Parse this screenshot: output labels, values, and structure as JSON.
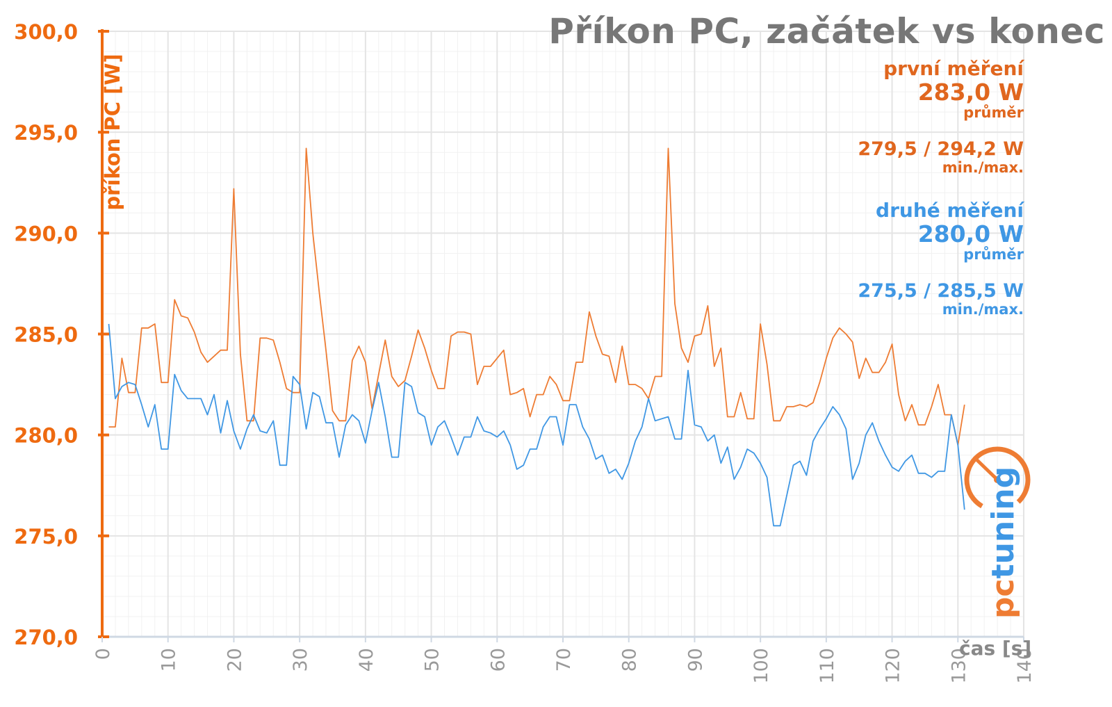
{
  "chart_data": {
    "type": "line",
    "title": "Příkon PC, začátek vs konec",
    "xlabel": "čas [s]",
    "ylabel": "příkon PC [W]",
    "xlim": [
      0,
      140
    ],
    "ylim": [
      270,
      300
    ],
    "x_ticks": [
      "0",
      "10",
      "20",
      "30",
      "40",
      "50",
      "60",
      "70",
      "80",
      "90",
      "100",
      "110",
      "120",
      "130",
      "140"
    ],
    "y_ticks": [
      "270,0",
      "275,0",
      "280,0",
      "285,0",
      "290,0",
      "295,0",
      "300,0"
    ],
    "grid": true,
    "series": [
      {
        "name": "první měření",
        "color": "#ee7c33",
        "x": [
          1,
          2,
          3,
          4,
          5,
          6,
          7,
          8,
          9,
          10,
          11,
          12,
          13,
          14,
          15,
          16,
          17,
          18,
          19,
          20,
          21,
          22,
          23,
          24,
          25,
          26,
          27,
          28,
          29,
          30,
          31,
          32,
          33,
          34,
          35,
          36,
          37,
          38,
          39,
          40,
          41,
          42,
          43,
          44,
          45,
          46,
          47,
          48,
          49,
          50,
          51,
          52,
          53,
          54,
          55,
          56,
          57,
          58,
          59,
          60,
          61,
          62,
          63,
          64,
          65,
          66,
          67,
          68,
          69,
          70,
          71,
          72,
          73,
          74,
          75,
          76,
          77,
          78,
          79,
          80,
          81,
          82,
          83,
          84,
          85,
          86,
          87,
          88,
          89,
          90,
          91,
          92,
          93,
          94,
          95,
          96,
          97,
          98,
          99,
          100,
          101,
          102,
          103,
          104,
          105,
          106,
          107,
          108,
          109,
          110,
          111,
          112,
          113,
          114,
          115,
          116,
          117,
          118,
          119,
          120,
          121,
          122,
          123,
          124,
          125,
          126,
          127,
          128,
          129,
          130,
          131
        ],
        "values": [
          280.4,
          280.4,
          283.8,
          282.1,
          282.1,
          285.3,
          285.3,
          285.5,
          282.6,
          282.6,
          286.7,
          285.9,
          285.8,
          285.1,
          284.1,
          283.6,
          283.9,
          284.2,
          284.2,
          292.2,
          284.0,
          280.7,
          280.7,
          284.8,
          284.8,
          284.7,
          283.6,
          282.3,
          282.1,
          282.1,
          294.2,
          290.0,
          287.0,
          284.2,
          281.2,
          280.7,
          280.7,
          283.7,
          284.4,
          283.6,
          281.3,
          283.0,
          284.7,
          282.9,
          282.4,
          282.7,
          283.9,
          285.2,
          284.3,
          283.2,
          282.3,
          282.3,
          284.9,
          285.1,
          285.1,
          285.0,
          282.5,
          283.4,
          283.4,
          283.8,
          284.2,
          282.0,
          282.1,
          282.3,
          280.9,
          282.0,
          282.0,
          282.9,
          282.5,
          281.7,
          281.7,
          283.6,
          283.6,
          286.1,
          284.9,
          284.0,
          283.9,
          282.6,
          284.4,
          282.5,
          282.5,
          282.3,
          281.8,
          282.9,
          282.9,
          294.2,
          286.5,
          284.3,
          283.6,
          284.9,
          285.0,
          286.4,
          283.4,
          284.3,
          280.9,
          280.9,
          282.1,
          280.8,
          280.8,
          285.5,
          283.5,
          280.7,
          280.7,
          281.4,
          281.4,
          281.5,
          281.4,
          281.6,
          282.6,
          283.8,
          284.8,
          285.3,
          285.0,
          284.6,
          282.8,
          283.8,
          283.1,
          283.1,
          283.6,
          284.5,
          282.0,
          280.7,
          281.5,
          280.5,
          280.5,
          281.4,
          282.5,
          281.0,
          281.0,
          279.5,
          281.5
        ]
      },
      {
        "name": "druhé měření",
        "color": "#3f97e4",
        "x": [
          1,
          2,
          3,
          4,
          5,
          6,
          7,
          8,
          9,
          10,
          11,
          12,
          13,
          14,
          15,
          16,
          17,
          18,
          19,
          20,
          21,
          22,
          23,
          24,
          25,
          26,
          27,
          28,
          29,
          30,
          31,
          32,
          33,
          34,
          35,
          36,
          37,
          38,
          39,
          40,
          41,
          42,
          43,
          44,
          45,
          46,
          47,
          48,
          49,
          50,
          51,
          52,
          53,
          54,
          55,
          56,
          57,
          58,
          59,
          60,
          61,
          62,
          63,
          64,
          65,
          66,
          67,
          68,
          69,
          70,
          71,
          72,
          73,
          74,
          75,
          76,
          77,
          78,
          79,
          80,
          81,
          82,
          83,
          84,
          85,
          86,
          87,
          88,
          89,
          90,
          91,
          92,
          93,
          94,
          95,
          96,
          97,
          98,
          99,
          100,
          101,
          102,
          103,
          104,
          105,
          106,
          107,
          108,
          109,
          110,
          111,
          112,
          113,
          114,
          115,
          116,
          117,
          118,
          119,
          120,
          121,
          122,
          123,
          124,
          125,
          126,
          127,
          128,
          129,
          130,
          131
        ],
        "values": [
          285.5,
          281.8,
          282.4,
          282.6,
          282.5,
          281.5,
          280.4,
          281.5,
          279.3,
          279.3,
          283.0,
          282.2,
          281.8,
          281.8,
          281.8,
          281.0,
          282.0,
          280.1,
          281.7,
          280.2,
          279.3,
          280.3,
          281.0,
          280.2,
          280.1,
          280.7,
          278.5,
          278.5,
          282.9,
          282.5,
          280.3,
          282.1,
          281.9,
          280.6,
          280.6,
          278.9,
          280.5,
          281.0,
          280.7,
          279.6,
          281.2,
          282.6,
          280.9,
          278.9,
          278.9,
          282.6,
          282.4,
          281.1,
          280.9,
          279.5,
          280.4,
          280.7,
          279.9,
          279.0,
          279.9,
          279.9,
          280.9,
          280.2,
          280.1,
          279.9,
          280.2,
          279.5,
          278.3,
          278.5,
          279.3,
          279.3,
          280.4,
          280.9,
          280.9,
          279.5,
          281.5,
          281.5,
          280.4,
          279.8,
          278.8,
          279.0,
          278.1,
          278.3,
          277.8,
          278.6,
          279.7,
          280.4,
          281.8,
          280.7,
          280.8,
          280.9,
          279.8,
          279.8,
          283.2,
          280.5,
          280.4,
          279.7,
          280.0,
          278.6,
          279.4,
          277.8,
          278.4,
          279.3,
          279.1,
          278.6,
          277.9,
          275.5,
          275.5,
          277.0,
          278.5,
          278.7,
          278.0,
          279.7,
          280.3,
          280.8,
          281.4,
          281.0,
          280.3,
          277.8,
          278.6,
          280.0,
          280.6,
          279.7,
          279.0,
          278.4,
          278.2,
          278.7,
          279.0,
          278.1,
          278.1,
          277.9,
          278.2,
          278.2,
          281.0,
          279.5,
          276.3
        ]
      }
    ]
  },
  "legend": {
    "s1_name": "první měření",
    "s1_avg": "283,0 W",
    "s1_avg_label": "průměr",
    "s1_minmax": "279,5 / 294,2 W",
    "s1_minmax_label": "min./max.",
    "s2_name": "druhé měření",
    "s2_avg": "280,0 W",
    "s2_avg_label": "průměr",
    "s2_minmax": "275,5 / 285,5 W",
    "s2_minmax_label": "min./max."
  },
  "logo": {
    "text": "pctuning",
    "accent": "#ee7c33",
    "secondary": "#3f97e4"
  },
  "colors": {
    "axis": "#ee6a10",
    "tick_label_y": "#ee6a10",
    "tick_label_x": "#999999",
    "grid": "#e4e4e4"
  }
}
